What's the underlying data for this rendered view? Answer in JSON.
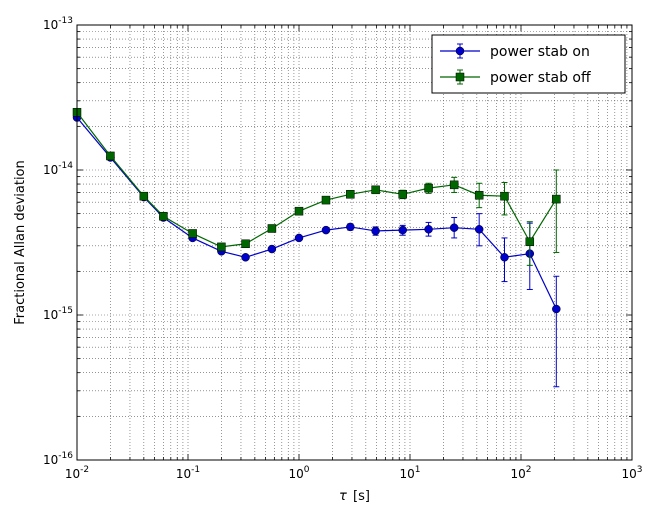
{
  "chart_data": {
    "type": "line",
    "xscale": "log",
    "yscale": "log",
    "xlim": [
      0.01,
      1000
    ],
    "ylim": [
      1e-16,
      1e-13
    ],
    "xlabel_symbol": "τ",
    "xlabel_unit": "[s]",
    "ylabel": "Fractional Allan deviation",
    "grid": true,
    "legend_position": "top-right",
    "x_ticks": [
      {
        "value": 0.01,
        "base": "10",
        "exp": "-2"
      },
      {
        "value": 0.1,
        "base": "10",
        "exp": "-1"
      },
      {
        "value": 1,
        "base": "10",
        "exp": "0"
      },
      {
        "value": 10,
        "base": "10",
        "exp": "1"
      },
      {
        "value": 100,
        "base": "10",
        "exp": "2"
      },
      {
        "value": 1000,
        "base": "10",
        "exp": "3"
      }
    ],
    "y_ticks": [
      {
        "value": 1e-16,
        "base": "10",
        "exp": "-16"
      },
      {
        "value": 1e-15,
        "base": "10",
        "exp": "-15"
      },
      {
        "value": 1e-14,
        "base": "10",
        "exp": "-14"
      },
      {
        "value": 1e-13,
        "base": "10",
        "exp": "-13"
      }
    ],
    "series": [
      {
        "name": "power stab on",
        "color": "#0000cc",
        "marker": "circle",
        "points": [
          {
            "x": 0.01,
            "y": 2.3e-14,
            "lo": 2.25e-14,
            "hi": 2.35e-14
          },
          {
            "x": 0.02,
            "y": 1.22e-14,
            "lo": 1.2e-14,
            "hi": 1.24e-14
          },
          {
            "x": 0.04,
            "y": 6.5e-15,
            "lo": 6.4e-15,
            "hi": 6.6e-15
          },
          {
            "x": 0.06,
            "y": 4.7e-15,
            "lo": 4.6e-15,
            "hi": 4.8e-15
          },
          {
            "x": 0.11,
            "y": 3.4e-15,
            "lo": 3.3e-15,
            "hi": 3.5e-15
          },
          {
            "x": 0.2,
            "y": 2.75e-15,
            "lo": 2.68e-15,
            "hi": 2.82e-15
          },
          {
            "x": 0.33,
            "y": 2.5e-15,
            "lo": 2.42e-15,
            "hi": 2.58e-15
          },
          {
            "x": 0.57,
            "y": 2.85e-15,
            "lo": 2.75e-15,
            "hi": 2.95e-15
          },
          {
            "x": 1.0,
            "y": 3.4e-15,
            "lo": 3.28e-15,
            "hi": 3.52e-15
          },
          {
            "x": 1.75,
            "y": 3.85e-15,
            "lo": 3.7e-15,
            "hi": 4e-15
          },
          {
            "x": 2.9,
            "y": 4.05e-15,
            "lo": 3.85e-15,
            "hi": 4.25e-15
          },
          {
            "x": 4.9,
            "y": 3.8e-15,
            "lo": 3.55e-15,
            "hi": 4.05e-15
          },
          {
            "x": 8.6,
            "y": 3.85e-15,
            "lo": 3.55e-15,
            "hi": 4.15e-15
          },
          {
            "x": 14.7,
            "y": 3.9e-15,
            "lo": 3.5e-15,
            "hi": 4.35e-15
          },
          {
            "x": 25.0,
            "y": 4e-15,
            "lo": 3.4e-15,
            "hi": 4.7e-15
          },
          {
            "x": 42.0,
            "y": 3.9e-15,
            "lo": 3e-15,
            "hi": 5e-15
          },
          {
            "x": 71.0,
            "y": 2.5e-15,
            "lo": 1.7e-15,
            "hi": 3.4e-15
          },
          {
            "x": 120.0,
            "y": 2.65e-15,
            "lo": 1.5e-15,
            "hi": 4.3e-15
          },
          {
            "x": 208.0,
            "y": 1.1e-15,
            "lo": 3.2e-16,
            "hi": 1.85e-15
          }
        ]
      },
      {
        "name": "power stab off",
        "color": "#006600",
        "marker": "square",
        "points": [
          {
            "x": 0.01,
            "y": 2.5e-14,
            "lo": 2.45e-14,
            "hi": 2.55e-14
          },
          {
            "x": 0.02,
            "y": 1.25e-14,
            "lo": 1.23e-14,
            "hi": 1.27e-14
          },
          {
            "x": 0.04,
            "y": 6.6e-15,
            "lo": 6.5e-15,
            "hi": 6.7e-15
          },
          {
            "x": 0.06,
            "y": 4.8e-15,
            "lo": 4.7e-15,
            "hi": 4.9e-15
          },
          {
            "x": 0.11,
            "y": 3.65e-15,
            "lo": 3.55e-15,
            "hi": 3.75e-15
          },
          {
            "x": 0.2,
            "y": 2.95e-15,
            "lo": 2.87e-15,
            "hi": 3.03e-15
          },
          {
            "x": 0.33,
            "y": 3.1e-15,
            "lo": 3e-15,
            "hi": 3.2e-15
          },
          {
            "x": 0.57,
            "y": 3.95e-15,
            "lo": 3.82e-15,
            "hi": 4.08e-15
          },
          {
            "x": 1.0,
            "y": 5.2e-15,
            "lo": 5.03e-15,
            "hi": 5.37e-15
          },
          {
            "x": 1.75,
            "y": 6.2e-15,
            "lo": 6e-15,
            "hi": 6.4e-15
          },
          {
            "x": 2.9,
            "y": 6.8e-15,
            "lo": 6.55e-15,
            "hi": 7.05e-15
          },
          {
            "x": 4.9,
            "y": 7.3e-15,
            "lo": 6.95e-15,
            "hi": 7.65e-15
          },
          {
            "x": 8.6,
            "y": 6.8e-15,
            "lo": 6.35e-15,
            "hi": 7.25e-15
          },
          {
            "x": 14.7,
            "y": 7.5e-15,
            "lo": 6.9e-15,
            "hi": 8.1e-15
          },
          {
            "x": 25.0,
            "y": 7.9e-15,
            "lo": 7e-15,
            "hi": 8.9e-15
          },
          {
            "x": 42.0,
            "y": 6.7e-15,
            "lo": 5.5e-15,
            "hi": 8.1e-15
          },
          {
            "x": 71.0,
            "y": 6.6e-15,
            "lo": 4.9e-15,
            "hi": 8.2e-15
          },
          {
            "x": 120.0,
            "y": 3.2e-15,
            "lo": 2.2e-15,
            "hi": 4.4e-15
          },
          {
            "x": 208.0,
            "y": 6.3e-15,
            "lo": 2.7e-15,
            "hi": 1e-14
          }
        ]
      }
    ]
  }
}
